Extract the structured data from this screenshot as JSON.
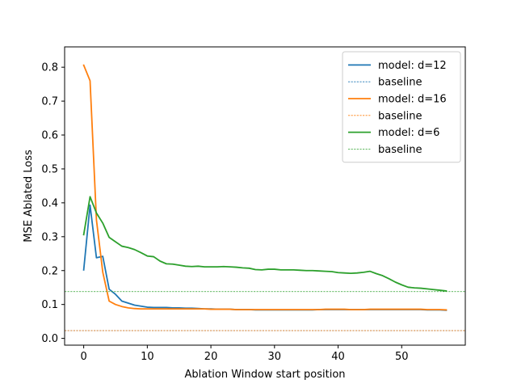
{
  "chart_data": {
    "type": "line",
    "title": "",
    "xlabel": "Ablation Window start position",
    "ylabel": "MSE Ablated Loss",
    "xlim": [
      -3,
      60
    ],
    "ylim": [
      -0.02,
      0.86
    ],
    "xticks": [
      0,
      10,
      20,
      30,
      40,
      50
    ],
    "yticks": [
      0.0,
      0.1,
      0.2,
      0.3,
      0.4,
      0.5,
      0.6,
      0.7,
      0.8
    ],
    "ytick_labels": [
      "0.0",
      "0.1",
      "0.2",
      "0.3",
      "0.4",
      "0.5",
      "0.6",
      "0.7",
      "0.8"
    ],
    "grid": false,
    "legend_position": "top-right",
    "x": [
      0,
      1,
      2,
      3,
      4,
      5,
      6,
      7,
      8,
      9,
      10,
      11,
      12,
      13,
      14,
      15,
      16,
      17,
      18,
      19,
      20,
      21,
      22,
      23,
      24,
      25,
      26,
      27,
      28,
      29,
      30,
      31,
      32,
      33,
      34,
      35,
      36,
      37,
      38,
      39,
      40,
      41,
      42,
      43,
      44,
      45,
      46,
      47,
      48,
      49,
      50,
      51,
      52,
      53,
      54,
      55,
      56,
      57
    ],
    "series": [
      {
        "name": "model: d=12",
        "kind": "line",
        "color": "#1f77b4",
        "values": [
          0.202,
          0.393,
          0.238,
          0.242,
          0.145,
          0.13,
          0.11,
          0.104,
          0.098,
          0.095,
          0.092,
          0.091,
          0.091,
          0.091,
          0.09,
          0.09,
          0.089,
          0.089,
          0.088,
          0.087,
          0.087,
          0.086,
          0.086,
          0.086,
          0.085,
          0.085,
          0.085,
          0.084,
          0.084,
          0.084,
          0.084,
          0.084,
          0.084,
          0.084,
          0.084,
          0.084,
          0.084,
          0.085,
          0.085,
          0.085,
          0.085,
          0.085,
          0.085,
          0.085,
          0.085,
          0.085,
          0.085,
          0.085,
          0.085,
          0.085,
          0.085,
          0.085,
          0.085,
          0.085,
          0.084,
          0.084,
          0.084,
          0.083
        ]
      },
      {
        "name": "baseline",
        "kind": "hline",
        "color": "#1f77b4",
        "value": 0.023
      },
      {
        "name": "model: d=16",
        "kind": "line",
        "color": "#ff7f0e",
        "values": [
          0.806,
          0.76,
          0.35,
          0.195,
          0.11,
          0.1,
          0.094,
          0.09,
          0.088,
          0.087,
          0.087,
          0.087,
          0.087,
          0.087,
          0.087,
          0.087,
          0.087,
          0.087,
          0.087,
          0.087,
          0.086,
          0.086,
          0.086,
          0.086,
          0.085,
          0.085,
          0.085,
          0.085,
          0.085,
          0.085,
          0.085,
          0.085,
          0.085,
          0.085,
          0.085,
          0.085,
          0.085,
          0.085,
          0.086,
          0.086,
          0.086,
          0.086,
          0.085,
          0.085,
          0.085,
          0.086,
          0.086,
          0.086,
          0.086,
          0.086,
          0.086,
          0.086,
          0.086,
          0.086,
          0.085,
          0.085,
          0.085,
          0.084
        ]
      },
      {
        "name": "baseline",
        "kind": "hline",
        "color": "#ff7f0e",
        "value": 0.023
      },
      {
        "name": "model: d=6",
        "kind": "line",
        "color": "#2ca02c",
        "values": [
          0.306,
          0.418,
          0.37,
          0.34,
          0.298,
          0.285,
          0.272,
          0.268,
          0.262,
          0.253,
          0.243,
          0.241,
          0.228,
          0.22,
          0.219,
          0.216,
          0.213,
          0.212,
          0.213,
          0.211,
          0.211,
          0.211,
          0.212,
          0.211,
          0.21,
          0.208,
          0.207,
          0.203,
          0.202,
          0.204,
          0.204,
          0.202,
          0.202,
          0.202,
          0.201,
          0.2,
          0.2,
          0.199,
          0.198,
          0.197,
          0.194,
          0.193,
          0.192,
          0.193,
          0.195,
          0.198,
          0.191,
          0.185,
          0.176,
          0.166,
          0.158,
          0.151,
          0.149,
          0.148,
          0.146,
          0.144,
          0.142,
          0.14
        ]
      },
      {
        "name": "baseline",
        "kind": "hline",
        "color": "#2ca02c",
        "value": 0.138
      }
    ]
  }
}
